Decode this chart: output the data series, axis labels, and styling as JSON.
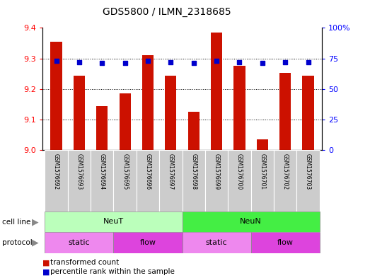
{
  "title": "GDS5800 / ILMN_2318685",
  "samples": [
    "GSM1576692",
    "GSM1576693",
    "GSM1576694",
    "GSM1576695",
    "GSM1576696",
    "GSM1576697",
    "GSM1576698",
    "GSM1576699",
    "GSM1576700",
    "GSM1576701",
    "GSM1576702",
    "GSM1576703"
  ],
  "bar_values": [
    9.355,
    9.243,
    9.145,
    9.185,
    9.31,
    9.243,
    9.125,
    9.385,
    9.275,
    9.035,
    9.253,
    9.243
  ],
  "dot_values": [
    73,
    72,
    71,
    71,
    73,
    72,
    71,
    73,
    72,
    71,
    72,
    72
  ],
  "ylim_left": [
    9.0,
    9.4
  ],
  "ylim_right": [
    0,
    100
  ],
  "yticks_left": [
    9.0,
    9.1,
    9.2,
    9.3,
    9.4
  ],
  "yticks_right": [
    0,
    25,
    50,
    75,
    100
  ],
  "bar_color": "#cc1100",
  "dot_color": "#0000cc",
  "sample_bg_color": "#cccccc",
  "cell_line_colors": [
    "#bbffbb",
    "#44ee44"
  ],
  "cell_line_labels": [
    "NeuT",
    "NeuN"
  ],
  "cell_line_starts": [
    0,
    6
  ],
  "cell_line_ends": [
    6,
    12
  ],
  "protocol_labels": [
    "static",
    "flow",
    "static",
    "flow"
  ],
  "protocol_starts": [
    0,
    3,
    6,
    9
  ],
  "protocol_ends": [
    3,
    6,
    9,
    12
  ],
  "protocol_colors_light": "#ee88ee",
  "protocol_colors_dark": "#dd44dd",
  "dotted_lines": [
    9.1,
    9.2,
    9.3
  ],
  "bar_width": 0.5
}
